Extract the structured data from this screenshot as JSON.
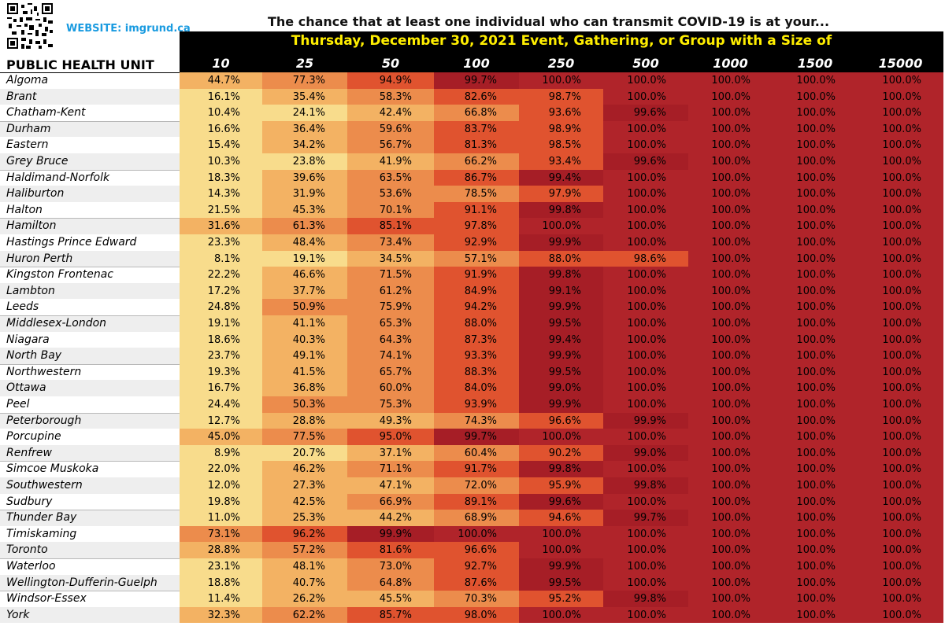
{
  "website": "WEBSITE: imgrund.ca",
  "title": "The chance that at least one individual who can transmit COVID-19 is at your...",
  "subtitle": "Thursday, December 30, 2021 Event, Gathering, or Group with a Size of",
  "row_header": "PUBLIC HEALTH UNIT",
  "colors": {
    "c1": "#f8dc8c",
    "c2": "#f3b263",
    "c3": "#ec8c4c",
    "c4": "#e0532f",
    "c5": "#a61e26",
    "c6": "#b0242a",
    "banner": "#000000",
    "subtitle": "#ffee00",
    "website": "#1a9be0"
  },
  "chart_data": {
    "type": "table",
    "title": "The chance that at least one individual who can transmit COVID-19 is at your...",
    "subtitle": "Thursday, December 30, 2021 Event, Gathering, or Group with a Size of",
    "columns": [
      "10",
      "25",
      "50",
      "100",
      "250",
      "500",
      "1000",
      "1500",
      "15000"
    ],
    "rows": [
      {
        "name": "Algoma",
        "values": [
          "44.7%",
          "77.3%",
          "94.9%",
          "99.7%",
          "100.0%",
          "100.0%",
          "100.0%",
          "100.0%",
          "100.0%"
        ]
      },
      {
        "name": "Brant",
        "values": [
          "16.1%",
          "35.4%",
          "58.3%",
          "82.6%",
          "98.7%",
          "100.0%",
          "100.0%",
          "100.0%",
          "100.0%"
        ]
      },
      {
        "name": "Chatham-Kent",
        "values": [
          "10.4%",
          "24.1%",
          "42.4%",
          "66.8%",
          "93.6%",
          "99.6%",
          "100.0%",
          "100.0%",
          "100.0%"
        ]
      },
      {
        "name": "Durham",
        "values": [
          "16.6%",
          "36.4%",
          "59.6%",
          "83.7%",
          "98.9%",
          "100.0%",
          "100.0%",
          "100.0%",
          "100.0%"
        ]
      },
      {
        "name": "Eastern",
        "values": [
          "15.4%",
          "34.2%",
          "56.7%",
          "81.3%",
          "98.5%",
          "100.0%",
          "100.0%",
          "100.0%",
          "100.0%"
        ]
      },
      {
        "name": "Grey Bruce",
        "values": [
          "10.3%",
          "23.8%",
          "41.9%",
          "66.2%",
          "93.4%",
          "99.6%",
          "100.0%",
          "100.0%",
          "100.0%"
        ]
      },
      {
        "name": "Haldimand-Norfolk",
        "values": [
          "18.3%",
          "39.6%",
          "63.5%",
          "86.7%",
          "99.4%",
          "100.0%",
          "100.0%",
          "100.0%",
          "100.0%"
        ]
      },
      {
        "name": "Haliburton",
        "values": [
          "14.3%",
          "31.9%",
          "53.6%",
          "78.5%",
          "97.9%",
          "100.0%",
          "100.0%",
          "100.0%",
          "100.0%"
        ]
      },
      {
        "name": "Halton",
        "values": [
          "21.5%",
          "45.3%",
          "70.1%",
          "91.1%",
          "99.8%",
          "100.0%",
          "100.0%",
          "100.0%",
          "100.0%"
        ]
      },
      {
        "name": "Hamilton",
        "values": [
          "31.6%",
          "61.3%",
          "85.1%",
          "97.8%",
          "100.0%",
          "100.0%",
          "100.0%",
          "100.0%",
          "100.0%"
        ]
      },
      {
        "name": "Hastings Prince Edward",
        "values": [
          "23.3%",
          "48.4%",
          "73.4%",
          "92.9%",
          "99.9%",
          "100.0%",
          "100.0%",
          "100.0%",
          "100.0%"
        ]
      },
      {
        "name": "Huron Perth",
        "values": [
          "8.1%",
          "19.1%",
          "34.5%",
          "57.1%",
          "88.0%",
          "98.6%",
          "100.0%",
          "100.0%",
          "100.0%"
        ]
      },
      {
        "name": "Kingston Frontenac",
        "values": [
          "22.2%",
          "46.6%",
          "71.5%",
          "91.9%",
          "99.8%",
          "100.0%",
          "100.0%",
          "100.0%",
          "100.0%"
        ]
      },
      {
        "name": "Lambton",
        "values": [
          "17.2%",
          "37.7%",
          "61.2%",
          "84.9%",
          "99.1%",
          "100.0%",
          "100.0%",
          "100.0%",
          "100.0%"
        ]
      },
      {
        "name": "Leeds",
        "values": [
          "24.8%",
          "50.9%",
          "75.9%",
          "94.2%",
          "99.9%",
          "100.0%",
          "100.0%",
          "100.0%",
          "100.0%"
        ]
      },
      {
        "name": "Middlesex-London",
        "values": [
          "19.1%",
          "41.1%",
          "65.3%",
          "88.0%",
          "99.5%",
          "100.0%",
          "100.0%",
          "100.0%",
          "100.0%"
        ]
      },
      {
        "name": "Niagara",
        "values": [
          "18.6%",
          "40.3%",
          "64.3%",
          "87.3%",
          "99.4%",
          "100.0%",
          "100.0%",
          "100.0%",
          "100.0%"
        ]
      },
      {
        "name": "North Bay",
        "values": [
          "23.7%",
          "49.1%",
          "74.1%",
          "93.3%",
          "99.9%",
          "100.0%",
          "100.0%",
          "100.0%",
          "100.0%"
        ]
      },
      {
        "name": "Northwestern",
        "values": [
          "19.3%",
          "41.5%",
          "65.7%",
          "88.3%",
          "99.5%",
          "100.0%",
          "100.0%",
          "100.0%",
          "100.0%"
        ]
      },
      {
        "name": "Ottawa",
        "values": [
          "16.7%",
          "36.8%",
          "60.0%",
          "84.0%",
          "99.0%",
          "100.0%",
          "100.0%",
          "100.0%",
          "100.0%"
        ]
      },
      {
        "name": "Peel",
        "values": [
          "24.4%",
          "50.3%",
          "75.3%",
          "93.9%",
          "99.9%",
          "100.0%",
          "100.0%",
          "100.0%",
          "100.0%"
        ]
      },
      {
        "name": "Peterborough",
        "values": [
          "12.7%",
          "28.8%",
          "49.3%",
          "74.3%",
          "96.6%",
          "99.9%",
          "100.0%",
          "100.0%",
          "100.0%"
        ]
      },
      {
        "name": "Porcupine",
        "values": [
          "45.0%",
          "77.5%",
          "95.0%",
          "99.7%",
          "100.0%",
          "100.0%",
          "100.0%",
          "100.0%",
          "100.0%"
        ]
      },
      {
        "name": "Renfrew",
        "values": [
          "8.9%",
          "20.7%",
          "37.1%",
          "60.4%",
          "90.2%",
          "99.0%",
          "100.0%",
          "100.0%",
          "100.0%"
        ]
      },
      {
        "name": "Simcoe Muskoka",
        "values": [
          "22.0%",
          "46.2%",
          "71.1%",
          "91.7%",
          "99.8%",
          "100.0%",
          "100.0%",
          "100.0%",
          "100.0%"
        ]
      },
      {
        "name": "Southwestern",
        "values": [
          "12.0%",
          "27.3%",
          "47.1%",
          "72.0%",
          "95.9%",
          "99.8%",
          "100.0%",
          "100.0%",
          "100.0%"
        ]
      },
      {
        "name": "Sudbury",
        "values": [
          "19.8%",
          "42.5%",
          "66.9%",
          "89.1%",
          "99.6%",
          "100.0%",
          "100.0%",
          "100.0%",
          "100.0%"
        ]
      },
      {
        "name": "Thunder Bay",
        "values": [
          "11.0%",
          "25.3%",
          "44.2%",
          "68.9%",
          "94.6%",
          "99.7%",
          "100.0%",
          "100.0%",
          "100.0%"
        ]
      },
      {
        "name": "Timiskaming",
        "values": [
          "73.1%",
          "96.2%",
          "99.9%",
          "100.0%",
          "100.0%",
          "100.0%",
          "100.0%",
          "100.0%",
          "100.0%"
        ]
      },
      {
        "name": "Toronto",
        "values": [
          "28.8%",
          "57.2%",
          "81.6%",
          "96.6%",
          "100.0%",
          "100.0%",
          "100.0%",
          "100.0%",
          "100.0%"
        ]
      },
      {
        "name": "Waterloo",
        "values": [
          "23.1%",
          "48.1%",
          "73.0%",
          "92.7%",
          "99.9%",
          "100.0%",
          "100.0%",
          "100.0%",
          "100.0%"
        ]
      },
      {
        "name": "Wellington-Dufferin-Guelph",
        "values": [
          "18.8%",
          "40.7%",
          "64.8%",
          "87.6%",
          "99.5%",
          "100.0%",
          "100.0%",
          "100.0%",
          "100.0%"
        ]
      },
      {
        "name": "Windsor-Essex",
        "values": [
          "11.4%",
          "26.2%",
          "45.5%",
          "70.3%",
          "95.2%",
          "99.8%",
          "100.0%",
          "100.0%",
          "100.0%"
        ]
      },
      {
        "name": "York",
        "values": [
          "32.3%",
          "62.2%",
          "85.7%",
          "98.0%",
          "100.0%",
          "100.0%",
          "100.0%",
          "100.0%",
          "100.0%"
        ]
      }
    ]
  }
}
